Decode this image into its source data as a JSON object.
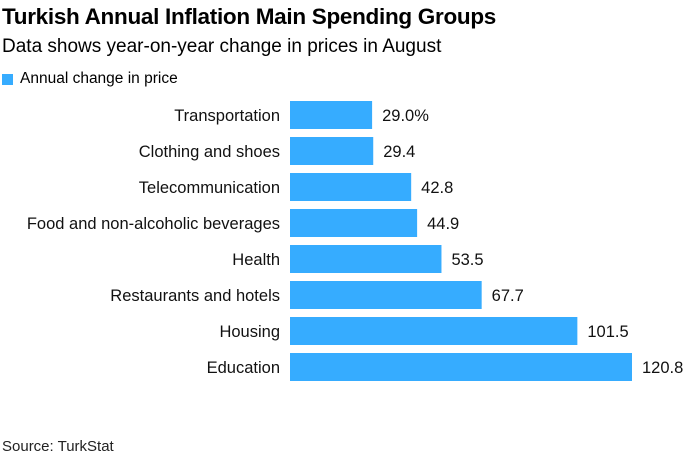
{
  "header": {
    "title": "Turkish Annual Inflation Main Spending Groups",
    "subtitle": "Data shows year-on-year change in prices in August"
  },
  "legend": {
    "label": "Annual change in price",
    "color": "#36acff"
  },
  "footer": {
    "source": "Source: TurkStat"
  },
  "chart_data": {
    "type": "bar",
    "orientation": "horizontal",
    "title": "Turkish Annual Inflation Main Spending Groups",
    "subtitle": "Data shows year-on-year change in prices in August",
    "categories": [
      "Transportation",
      "Clothing and shoes",
      "Telecommunication",
      "Food and non-alcoholic beverages",
      "Health",
      "Restaurants and hotels",
      "Housing",
      "Education"
    ],
    "series": [
      {
        "name": "Annual change in price",
        "color": "#36acff",
        "values": [
          29.0,
          29.4,
          42.8,
          44.9,
          53.5,
          67.7,
          101.5,
          120.8
        ],
        "labels": [
          "29.0%",
          "29.4",
          "42.8",
          "44.9",
          "53.5",
          "67.7",
          "101.5",
          "120.8"
        ]
      }
    ],
    "xlabel": "",
    "ylabel": "",
    "xlim": [
      0,
      120.8
    ],
    "grid": false,
    "legend_position": "top-left",
    "unit": "%"
  }
}
